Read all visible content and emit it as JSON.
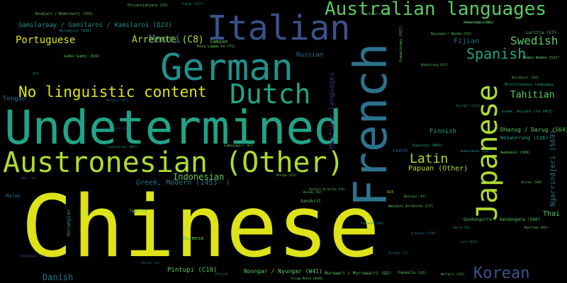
{
  "palette": {
    "background": "#000000",
    "yellow": "#dde318",
    "lime": "#addc30",
    "green": "#5ec962",
    "teal": "#21918c",
    "blue": "#2c728e",
    "indigo": "#3b528b",
    "purple": "#472d7b",
    "dark_purple": "#440154"
  },
  "words": {
    "chinese": "Chinese",
    "undetermined": "Undetermined",
    "french": "French",
    "german": "German",
    "italian": "Italian",
    "austronesian": "Austronesian (Other)",
    "dutch": "Dutch",
    "japanese": "Japanese",
    "australian_languages": "Australian languages",
    "no_linguistic_content": "No linguistic content",
    "korean": "Korean",
    "spanish": "Spanish",
    "latin": "Latin",
    "swedish": "Swedish",
    "maori": "Maori",
    "portuguese": "Portuguese",
    "arrernte": "Arrernte (C8)",
    "tahitian": "Tahitian",
    "indonesian": "Indonesian",
    "papuan": "Papuan (Other)",
    "danish": "Danish",
    "fijian": "Fijian",
    "finnish": "Finnish",
    "russian": "Russian",
    "greek_modern": "Greek, Modern (1453- )",
    "multiple_languages": "Multiple languages",
    "gamilaraay": "Gamilaraay / Gamilaroi / Kamilaroi (D23)",
    "tongan": "Tongan",
    "thai": "Thai",
    "ngarrindjeri": "Ngarrindjeri (S69)",
    "dharug": "Dharug / Darug (S64)",
    "woiwurrung": "Woiwurrung (S36)",
    "pintupi": "Pintupi (C10)",
    "noongar": "Noongar / Nyungar (W41)",
    "burmese": "Burmese",
    "malay": "Malay",
    "norwegian": "Norwegian",
    "samoan": "Samoan",
    "sanskrit": "Sanskrit",
    "czech": "Czech",
    "pitjantjatjara": "Pitjantjatjara (C6)",
    "bindjali": "Bindjali / Bodornwitj (S15)",
    "wiradjuri": "Wiradjuri (D30)",
    "yuwaalaraay": "Yuwaalaraay (D27)",
    "wathaurong": "Wathaurong (S28)",
    "western_arrarnta": "Western Arrarnta (C7)",
    "gundungurra": "Gundungurra / Gandangara (S60)",
    "kuwinjku": "Kuwinjku (N65)",
    "luritja": "Luritja (C7)",
    "yuwaalaraay_dup": "Wemba Wemba (S32)",
    "wurundjeri": "Wurundjeri (S35)",
    "awabakal": "Awabakal (S66)",
    "pakistani": "Miscellaneous languages",
    "greek_ancient": "Greek, Ancient (to 1453)",
    "burarra": "Burarra (N93)",
    "gubbi": "Gubbi Gubbi (E29)",
    "kala_lagaw": "Kala Lagaw Ya (Y1)",
    "pankalla": "Pankalla (L6)",
    "nukuoro": "Ngiyampaa / Ngemba (D22)",
    "muruwari": "Muruwari / Murrawarri (D2)",
    "eastern_arrernte": "Eastern Arrernte (C9)",
    "nyulnyul": "Nyulnyul (K1)",
    "bandjalang": "Bandjalang (E17)",
    "tagalog": "Tagalog",
    "polish": "Polish",
    "gri": "gri",
    "d23": "D23",
    "warlpiri": "Warlpiri (C15)",
    "mahindi": "Kurnai (S68)",
    "gunditjmara": "Gunditjmara (S16)",
    "yidiny": "Yidiny (Y117)",
    "wergaia": "Wergaia (S17)",
    "yorta": "Yorta Yorta (D2)",
    "dhurga": "Dhurga (S52)",
    "yolngu": "Yolngu Matha (N198)",
    "gumbaynggirr": "Gumbaynggirr (E7)",
    "bunuba": "Bunuba (K3)",
    "nauo": "Nauo (L4)",
    "kaurna": "Kaurna (L3)",
    "ngunnawal": "Ngunnawal (D3)",
    "biripi": "Biripi (E4)",
    "djabugay": "Djabugay (Y106)",
    "wiradjuri2": "Wemba Wemba (S34)",
    "dyirbal": "Dyirbal (Y123)",
    "ngarluma": "Ngarluma (W35)",
    "narrm": "Narrm (D3)",
    "tharawal": "Tharawal (S59)",
    "yindjibarndi": "Yindjibarndi (W39)",
    "wirangu": "Wirangu (C3)",
    "jaru": "Jaru (K12)"
  }
}
